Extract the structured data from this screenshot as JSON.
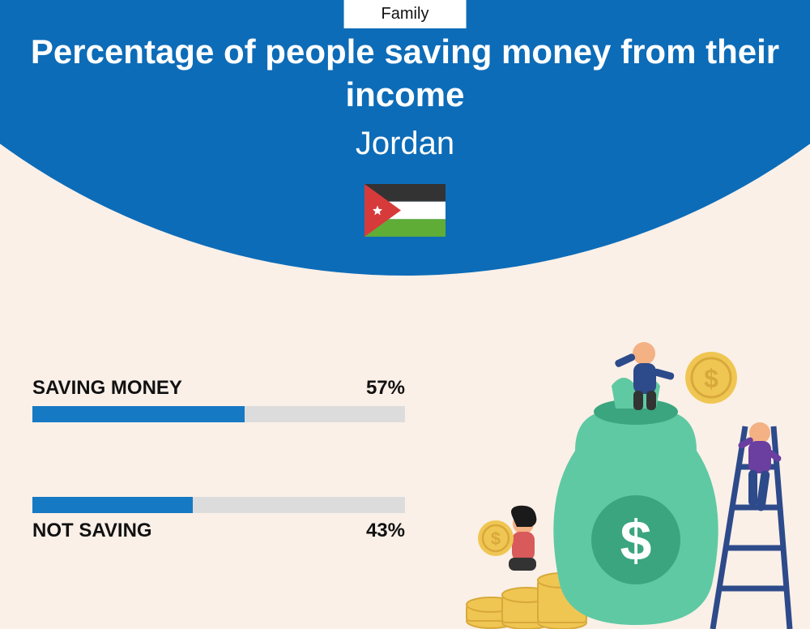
{
  "colors": {
    "background": "#faf0e8",
    "arc": "#0d6cb8",
    "bar_track": "#dcdcdc",
    "bar_fill": "#1679c4",
    "text_dark": "#111111",
    "text_light": "#ffffff"
  },
  "tab": {
    "label": "Family"
  },
  "title": {
    "text": "Percentage of people saving money from their income",
    "fontsize": 42
  },
  "subtitle": {
    "text": "Jordan",
    "fontsize": 40
  },
  "flag": {
    "stripes": [
      "#333333",
      "#ffffff",
      "#5fad37"
    ],
    "triangle": "#d73a3a",
    "star": "#ffffff"
  },
  "bars": {
    "label_fontsize": 24,
    "items": [
      {
        "label": "SAVING MONEY",
        "value": 57,
        "display": "57%",
        "label_position": "above"
      },
      {
        "label": "NOT SAVING",
        "value": 43,
        "display": "43%",
        "label_position": "below"
      }
    ],
    "gap": 80
  },
  "illustration": {
    "bag_color": "#5fc9a3",
    "bag_dark": "#3aa57f",
    "coin_color": "#f0c653",
    "coin_dark": "#d8a93a",
    "ladder_color": "#2d4a8a",
    "person1": {
      "shirt": "#2d4a8a",
      "pants": "#333333",
      "skin": "#f4b183"
    },
    "person2": {
      "shirt": "#6b3fa0",
      "pants": "#2d4a8a",
      "skin": "#f4b183"
    },
    "person3": {
      "shirt": "#d85a5a",
      "pants": "#333333",
      "skin": "#f4b183",
      "hair": "#1a1a1a"
    }
  }
}
